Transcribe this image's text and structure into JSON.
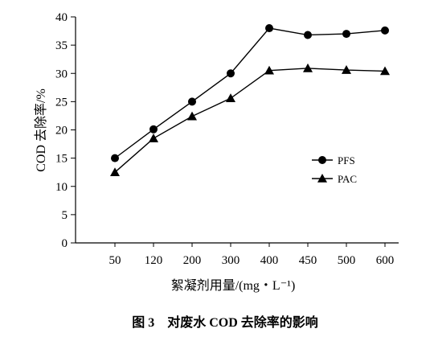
{
  "chart_data": {
    "type": "line",
    "categories": [
      "50",
      "120",
      "200",
      "300",
      "400",
      "450",
      "500",
      "600"
    ],
    "series": [
      {
        "name": "PFS",
        "marker": "circle",
        "values": [
          15,
          20.1,
          25,
          30,
          38,
          36.8,
          37,
          37.6
        ]
      },
      {
        "name": "PAC",
        "marker": "triangle",
        "values": [
          12.5,
          18.5,
          22.4,
          25.6,
          30.5,
          30.9,
          30.6,
          30.4
        ]
      }
    ],
    "xlabel": "絮凝剂用量/(mg・L⁻¹)",
    "ylabel": "COD 去除率/%",
    "ylim": [
      0,
      40
    ],
    "yticks": [
      0,
      5,
      10,
      15,
      20,
      25,
      30,
      35,
      40
    ],
    "grid": false,
    "legend_position": "right",
    "colors": {
      "series": "#000000",
      "axis": "#000000"
    }
  },
  "caption": "图 3　对废水 COD 去除率的影响"
}
